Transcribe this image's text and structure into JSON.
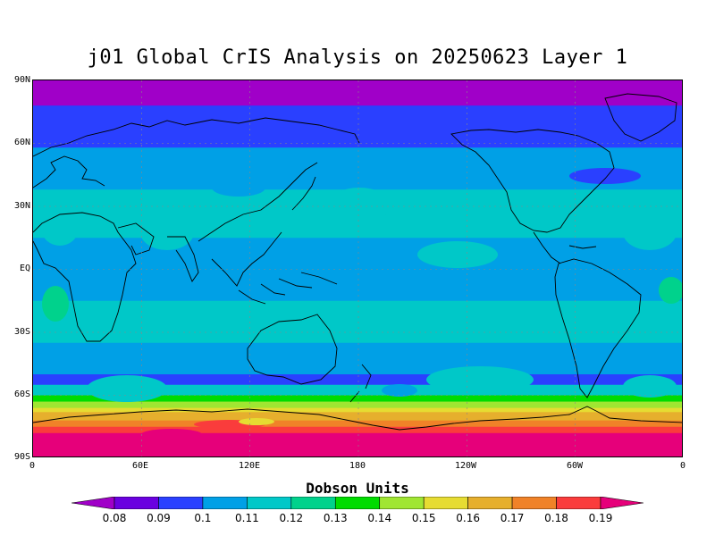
{
  "title": "j01 Global CrIS Analysis on 20250623 Layer 1",
  "axes": {
    "y_ticks": [
      "90N",
      "60N",
      "30N",
      "EQ",
      "30S",
      "60S",
      "90S"
    ],
    "x_ticks": [
      "0",
      "60E",
      "120E",
      "180",
      "120W",
      "60W",
      "0"
    ]
  },
  "colorbar": {
    "unit_label": "Dobson Units",
    "levels": [
      "0.08",
      "0.09",
      "0.1",
      "0.11",
      "0.12",
      "0.13",
      "0.14",
      "0.15",
      "0.16",
      "0.17",
      "0.18",
      "0.19"
    ],
    "colors": [
      "#a000c8",
      "#6a00e0",
      "#2a40ff",
      "#00a0e6",
      "#00c8c8",
      "#00d28c",
      "#00dc00",
      "#a0e632",
      "#e6dc32",
      "#e6af2d",
      "#f08228",
      "#fa3c3c",
      "#e6007a"
    ]
  },
  "chart_data": {
    "type": "heatmap",
    "title": "j01 Global CrIS Analysis on 20250623 Layer 1",
    "colorbar_label": "Dobson Units",
    "projection": "cylindrical equidistant",
    "lon_range": [
      0,
      360
    ],
    "lat_range": [
      -90,
      90
    ],
    "grid": true,
    "zonal_bands": [
      {
        "lat_from": 90,
        "lat_to": 78,
        "value_class": "<0.08"
      },
      {
        "lat_from": 78,
        "lat_to": 58,
        "value_class": "0.09-0.1"
      },
      {
        "lat_from": 58,
        "lat_to": 38,
        "value_class": "0.1-0.11"
      },
      {
        "lat_from": 38,
        "lat_to": 15,
        "value_class": "0.11-0.12"
      },
      {
        "lat_from": 15,
        "lat_to": -15,
        "value_class": "0.1-0.11"
      },
      {
        "lat_from": -15,
        "lat_to": -35,
        "value_class": "0.11-0.12"
      },
      {
        "lat_from": -35,
        "lat_to": -50,
        "value_class": "0.1-0.11"
      },
      {
        "lat_from": -50,
        "lat_to": -55,
        "value_class": "0.09-0.1"
      },
      {
        "lat_from": -55,
        "lat_to": -60,
        "value_class": "0.11-0.12"
      },
      {
        "lat_from": -60,
        "lat_to": -63,
        "value_class": "0.13-0.14"
      },
      {
        "lat_from": -63,
        "lat_to": -66,
        "value_class": "0.14-0.15"
      },
      {
        "lat_from": -66,
        "lat_to": -68,
        "value_class": "0.15-0.16"
      },
      {
        "lat_from": -68,
        "lat_to": -72,
        "value_class": "0.16-0.17"
      },
      {
        "lat_from": -72,
        "lat_to": -75,
        "value_class": "0.17-0.18"
      },
      {
        "lat_from": -75,
        "lat_to": -78,
        "value_class": "0.18-0.19"
      },
      {
        "lat_from": -78,
        "lat_to": -90,
        "value_class": ">0.19"
      }
    ]
  }
}
